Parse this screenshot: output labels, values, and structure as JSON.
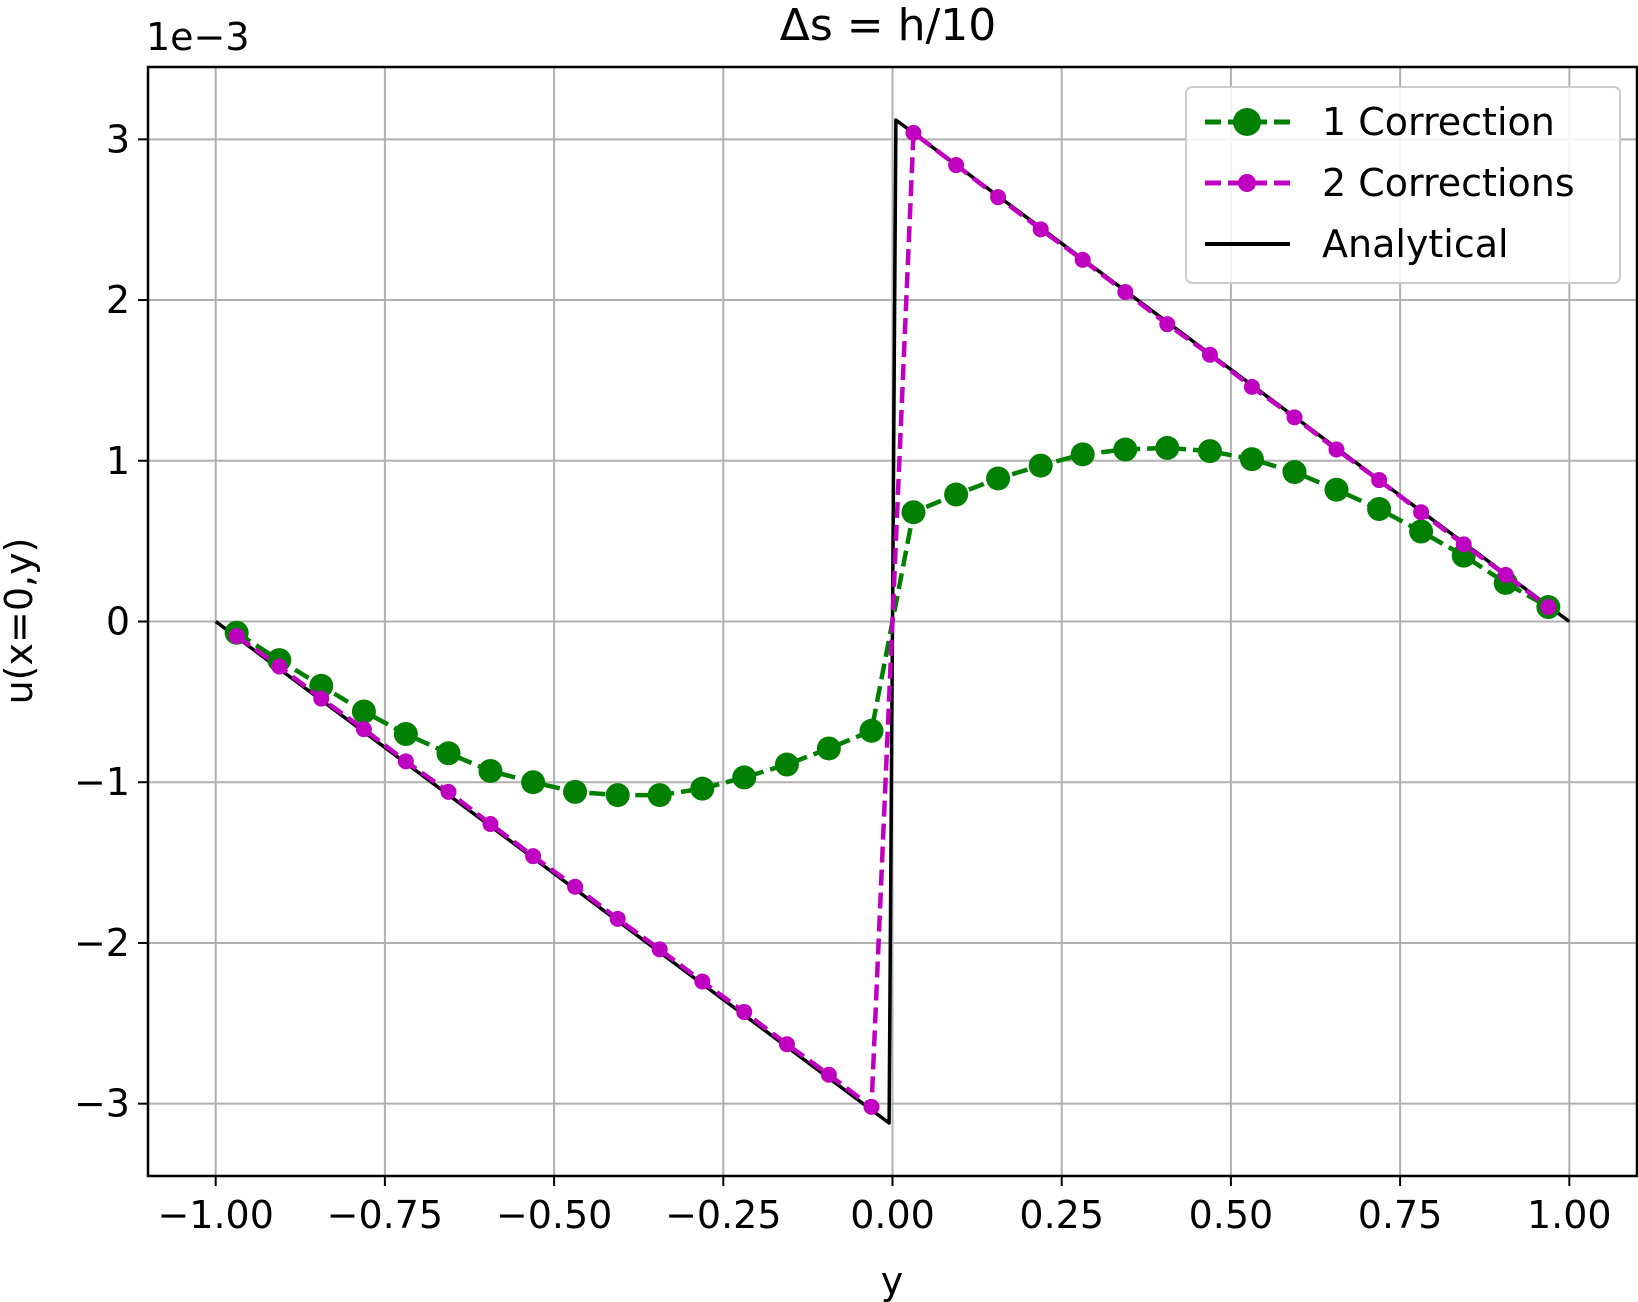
{
  "chart_data": {
    "type": "line",
    "title": "Δs = h/10",
    "xlabel": "y",
    "ylabel": "u(x=0,y)",
    "y_offset_label": "1e−3",
    "xlim": [
      -1.1,
      1.1
    ],
    "ylim": [
      -3.45,
      3.45
    ],
    "grid": true,
    "legend_position": "top-right",
    "x_ticks": [
      -1.0,
      -0.75,
      -0.5,
      -0.25,
      0.0,
      0.25,
      0.5,
      0.75,
      1.0
    ],
    "x_tick_labels": [
      "−1.00",
      "−0.75",
      "−0.50",
      "−0.25",
      "0.00",
      "0.25",
      "0.50",
      "0.75",
      "1.00"
    ],
    "y_ticks": [
      -3,
      -2,
      -1,
      0,
      1,
      2,
      3
    ],
    "y_tick_labels": [
      "−3",
      "−2",
      "−1",
      "0",
      "1",
      "2",
      "3"
    ],
    "series": [
      {
        "name": "1 Correction",
        "color": "#008000",
        "style": "dashed",
        "marker": "circle-large",
        "x": [
          -0.969,
          -0.906,
          -0.844,
          -0.781,
          -0.719,
          -0.656,
          -0.594,
          -0.531,
          -0.469,
          -0.406,
          -0.344,
          -0.281,
          -0.219,
          -0.156,
          -0.094,
          -0.031,
          0.0,
          0.031,
          0.094,
          0.156,
          0.219,
          0.281,
          0.344,
          0.406,
          0.469,
          0.531,
          0.594,
          0.656,
          0.719,
          0.781,
          0.844,
          0.906,
          0.969
        ],
        "values": [
          -0.07,
          -0.24,
          -0.4,
          -0.56,
          -0.7,
          -0.82,
          -0.93,
          -1.0,
          -1.06,
          -1.08,
          -1.08,
          -1.04,
          -0.97,
          -0.89,
          -0.79,
          -0.68,
          0.0,
          0.68,
          0.79,
          0.89,
          0.97,
          1.04,
          1.07,
          1.08,
          1.06,
          1.01,
          0.93,
          0.82,
          0.7,
          0.56,
          0.41,
          0.24,
          0.09
        ]
      },
      {
        "name": "2 Corrections",
        "color": "#c000c0",
        "style": "dashed",
        "marker": "circle-small",
        "x": [
          -0.969,
          -0.906,
          -0.844,
          -0.781,
          -0.719,
          -0.656,
          -0.594,
          -0.531,
          -0.469,
          -0.406,
          -0.344,
          -0.281,
          -0.219,
          -0.156,
          -0.094,
          -0.031,
          0.031,
          0.094,
          0.156,
          0.219,
          0.281,
          0.344,
          0.406,
          0.469,
          0.531,
          0.594,
          0.656,
          0.719,
          0.781,
          0.844,
          0.906,
          0.969
        ],
        "values": [
          -0.09,
          -0.28,
          -0.48,
          -0.67,
          -0.87,
          -1.06,
          -1.26,
          -1.46,
          -1.65,
          -1.85,
          -2.04,
          -2.24,
          -2.43,
          -2.63,
          -2.82,
          -3.02,
          3.04,
          2.84,
          2.64,
          2.44,
          2.25,
          2.05,
          1.85,
          1.66,
          1.46,
          1.27,
          1.07,
          0.88,
          0.68,
          0.48,
          0.29,
          0.09
        ]
      },
      {
        "name": "Analytical",
        "color": "#000000",
        "style": "solid",
        "marker": "none",
        "x": [
          -1.0,
          -0.005,
          -0.005,
          0.005,
          0.005,
          1.0
        ],
        "values": [
          0.0,
          -3.12,
          -3.12,
          3.12,
          3.12,
          0.0
        ]
      }
    ]
  }
}
